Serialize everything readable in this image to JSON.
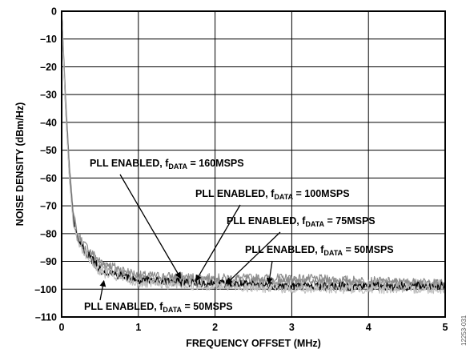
{
  "chart_data": {
    "type": "line",
    "xlabel": "FREQUENCY OFFSET (MHz)",
    "ylabel": "NOISE DENSITY (dBm/Hz)",
    "xlim": [
      0,
      5
    ],
    "ylim": [
      -110,
      0
    ],
    "x_ticks": [
      "0",
      "1",
      "2",
      "3",
      "4",
      "5"
    ],
    "y_ticks": [
      "0",
      "–10",
      "–20",
      "–30",
      "–40",
      "–50",
      "–60",
      "–70",
      "–80",
      "–90",
      "–100",
      "–110"
    ],
    "grid": true,
    "series": [
      {
        "name": "PLL ENABLED, fDATA = 160MSPS",
        "color": "#8c8c8c",
        "x": [
          0,
          0.05,
          0.1,
          0.15,
          0.2,
          0.3,
          0.5,
          1,
          2,
          3,
          4,
          5
        ],
        "values": [
          0,
          -30,
          -55,
          -72,
          -80,
          -84,
          -90,
          -95,
          -96,
          -96,
          -97,
          -98
        ]
      },
      {
        "name": "PLL ENABLED, fDATA = 100MSPS",
        "color": "#8c8c8c",
        "x": [
          0,
          0.05,
          0.1,
          0.15,
          0.2,
          0.3,
          0.5,
          1,
          2,
          3,
          4,
          5
        ],
        "values": [
          0,
          -32,
          -57,
          -73,
          -81,
          -85,
          -91,
          -96,
          -97,
          -97,
          -98,
          -98
        ]
      },
      {
        "name": "PLL ENABLED, fDATA = 75MSPS",
        "color": "#a6a6a6",
        "x": [
          0,
          0.05,
          0.1,
          0.15,
          0.2,
          0.3,
          0.5,
          1,
          2,
          3,
          4,
          5
        ],
        "values": [
          0,
          -33,
          -58,
          -74,
          -81,
          -86,
          -92,
          -97,
          -98,
          -99,
          -99,
          -99
        ]
      },
      {
        "name": "PLL ENABLED, fDATA = 50MSPS",
        "color": "#000000",
        "x": [
          0,
          0.05,
          0.1,
          0.15,
          0.2,
          0.3,
          0.5,
          1,
          2,
          3,
          4,
          5
        ],
        "values": [
          0,
          -34,
          -59,
          -75,
          -82,
          -86,
          -93,
          -97,
          -98,
          -99,
          -99,
          -99
        ]
      },
      {
        "name": "PLL ENABLED, fDATA = 50MSPS",
        "color": "#bfbfbf",
        "x": [
          0,
          0.05,
          0.1,
          0.15,
          0.2,
          0.3,
          0.5,
          1,
          2,
          3,
          4,
          5
        ],
        "values": [
          0,
          -35,
          -60,
          -76,
          -82,
          -87,
          -94,
          -98,
          -99,
          -100,
          -100,
          -100
        ]
      }
    ],
    "annotations": [
      {
        "prefix": "PLL ENABLED, f",
        "sub": "DATA",
        "suffix": " = 160MSPS",
        "target": [
          1.55,
          -96
        ]
      },
      {
        "prefix": "PLL ENABLED, f",
        "sub": "DATA",
        "suffix": " = 100MSPS",
        "target": [
          1.75,
          -97
        ]
      },
      {
        "prefix": "PLL ENABLED, f",
        "sub": "DATA",
        "suffix": " = 75MSPS",
        "target": [
          2.15,
          -98
        ]
      },
      {
        "prefix": "PLL ENABLED, f",
        "sub": "DATA",
        "suffix": " = 50MSPS",
        "target": [
          2.7,
          -98
        ]
      },
      {
        "prefix": "PLL ENABLED, f",
        "sub": "DATA",
        "suffix": " = 50MSPS",
        "target": [
          0.55,
          -97
        ]
      }
    ]
  },
  "figure_id": "12253-031"
}
